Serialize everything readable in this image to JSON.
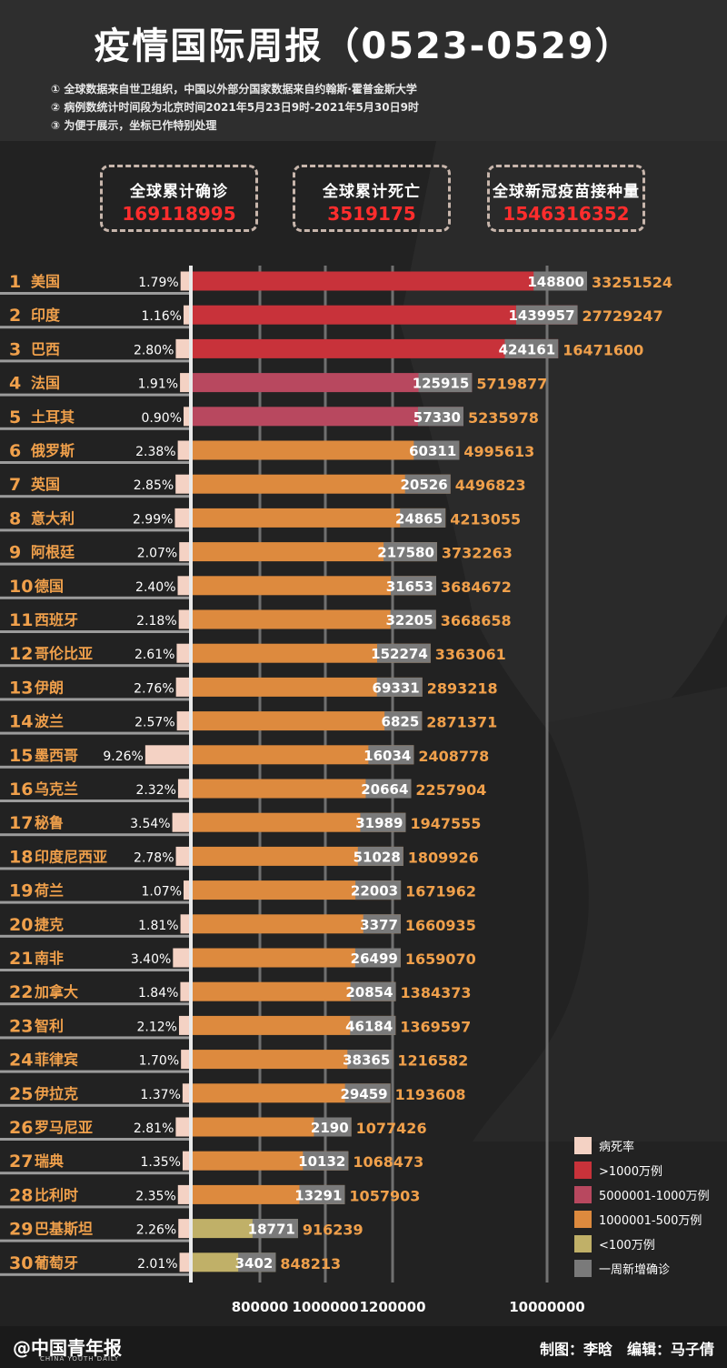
{
  "title": "疫情国际周报（0523-0529）",
  "notes": [
    "① 全球数据来自世卫组织，中国以外部分国家数据来自约翰斯·霍普金斯大学",
    "② 病例数统计时间段为北京时间2021年5月23日9时-2021年5月30日9时",
    "③ 为便于展示，坐标已作特别处理"
  ],
  "stats": [
    {
      "label": "全球累计确诊",
      "value": "169118995"
    },
    {
      "label": "全球累计死亡",
      "value": "3519175"
    },
    {
      "label": "全球新冠疫苗接种量",
      "value": "1546316352"
    }
  ],
  "legend": [
    {
      "label": "病死率",
      "color": "#f4d2c4"
    },
    {
      "label": ">1000万例",
      "color": "#c8323a"
    },
    {
      "label": "5000001-1000万例",
      "color": "#b8485f"
    },
    {
      "label": "1000001-500万例",
      "color": "#dd8a3e"
    },
    {
      "label": "<100万例",
      "color": "#c0b068"
    },
    {
      "label": "一周新增确诊",
      "color": "#7a7a7a"
    }
  ],
  "footer": {
    "logo": "@中国青年报",
    "logo_sub": "CHINA YOUTH DAILY",
    "credits": "制图：李晗　编辑：马子倩"
  },
  "chart_data": {
    "type": "bar",
    "orientation": "horizontal",
    "axis_ticks": [
      "800000",
      "1000000",
      "1200000",
      "10000000"
    ],
    "colors": {
      "tier1": "#c8323a",
      "tier2": "#b8485f",
      "tier3": "#dd8a3e",
      "tier4": "#c0b068",
      "weekly": "#7a7a7a",
      "rate": "#f4d2c4",
      "value_text": "#f0a04b"
    },
    "categories": [
      "美国",
      "印度",
      "巴西",
      "法国",
      "土耳其",
      "俄罗斯",
      "英国",
      "意大利",
      "阿根廷",
      "德国",
      "西班牙",
      "哥伦比亚",
      "伊朗",
      "波兰",
      "墨西哥",
      "乌克兰",
      "秘鲁",
      "印度尼西亚",
      "荷兰",
      "捷克",
      "南非",
      "加拿大",
      "智利",
      "菲律宾",
      "伊拉克",
      "罗马尼亚",
      "瑞典",
      "比利时",
      "巴基斯坦",
      "葡萄牙"
    ],
    "rates": [
      "1.79%",
      "1.16%",
      "2.80%",
      "1.91%",
      "0.90%",
      "2.38%",
      "2.85%",
      "2.99%",
      "2.07%",
      "2.40%",
      "2.18%",
      "2.61%",
      "2.76%",
      "2.57%",
      "9.26%",
      "2.32%",
      "3.54%",
      "2.78%",
      "1.07%",
      "1.81%",
      "3.40%",
      "1.84%",
      "2.12%",
      "1.70%",
      "1.37%",
      "2.81%",
      "1.35%",
      "2.35%",
      "2.26%",
      "2.01%"
    ],
    "weekly_new": [
      "148800",
      "1439957",
      "424161",
      "125915",
      "57330",
      "60311",
      "20526",
      "24865",
      "217580",
      "31653",
      "32205",
      "152274",
      "69331",
      "6825",
      "16034",
      "20664",
      "31989",
      "51028",
      "22003",
      "3377",
      "26499",
      "20854",
      "46184",
      "38365",
      "29459",
      "2190",
      "10132",
      "13291",
      "18771",
      "3402"
    ],
    "cumulative": [
      "33251524",
      "27729247",
      "16471600",
      "5719877",
      "5235978",
      "4995613",
      "4496823",
      "4213055",
      "3732263",
      "3684672",
      "3668658",
      "3363061",
      "2893218",
      "2871371",
      "2408778",
      "2257904",
      "1947555",
      "1809926",
      "1671962",
      "1660935",
      "1659070",
      "1384373",
      "1369597",
      "1216582",
      "1193608",
      "1077426",
      "1068473",
      "1057903",
      "916239",
      "848213"
    ],
    "values": [
      33251524,
      27729247,
      16471600,
      5719877,
      5235978,
      4995613,
      4496823,
      4213055,
      3732263,
      3684672,
      3668658,
      3363061,
      2893218,
      2871371,
      2408778,
      2257904,
      1947555,
      1809926,
      1671962,
      1660935,
      1659070,
      1384373,
      1369597,
      1216582,
      1193608,
      1077426,
      1068473,
      1057903,
      916239,
      848213
    ]
  }
}
